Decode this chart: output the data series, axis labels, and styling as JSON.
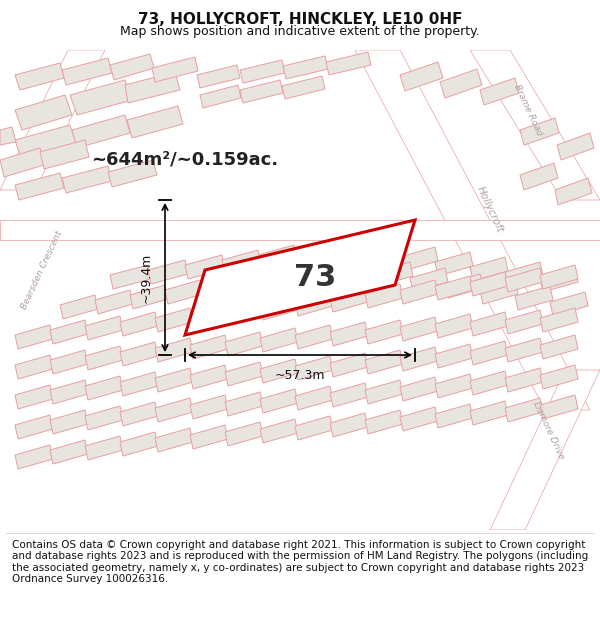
{
  "title": "73, HOLLYCROFT, HINCKLEY, LE10 0HF",
  "subtitle": "Map shows position and indicative extent of the property.",
  "footer": "Contains OS data © Crown copyright and database right 2021. This information is subject to Crown copyright and database rights 2023 and is reproduced with the permission of HM Land Registry. The polygons (including the associated geometry, namely x, y co-ordinates) are subject to Crown copyright and database rights 2023 Ordnance Survey 100026316.",
  "area_label": "~644m²/~0.159ac.",
  "dim_width": "~57.3m",
  "dim_height": "~39.4m",
  "plot_label": "73",
  "map_bg": "#f2f0ec",
  "header_bg": "#ffffff",
  "footer_bg": "#ffffff",
  "plot_fill": "#ffffff",
  "plot_edge": "#cc0000",
  "building_fill": "#e8e4df",
  "building_edge": "#e8a0a0",
  "road_fill": "#ffffff",
  "road_edge": "#e8a0a0",
  "title_fontsize": 11,
  "subtitle_fontsize": 9,
  "footer_fontsize": 7.5,
  "annotation_color": "#111111",
  "street_color": "#b0a0a0",
  "area_fontsize": 13,
  "dim_fontsize": 9,
  "plot_label_fontsize": 22
}
